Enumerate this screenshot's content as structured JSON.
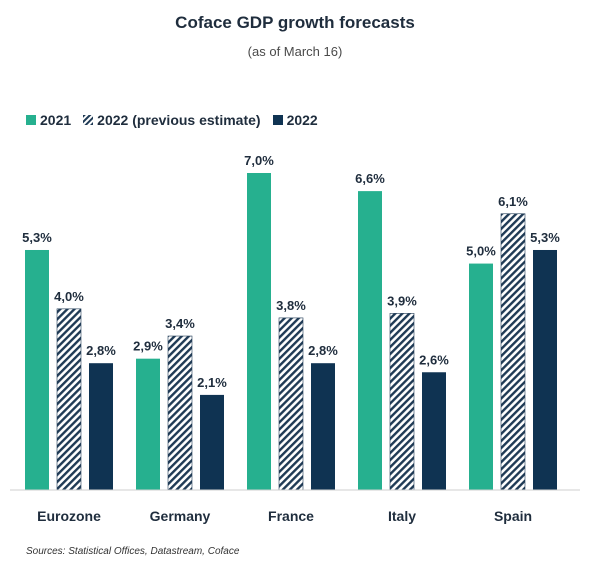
{
  "chart_data": {
    "type": "bar",
    "title": "Coface GDP growth forecasts",
    "subtitle": "(as of March 16)",
    "categories": [
      "Eurozone",
      "Germany",
      "France",
      "Italy",
      "Spain"
    ],
    "series": [
      {
        "name": "2021",
        "values": [
          5.3,
          2.9,
          7.0,
          6.6,
          5.0
        ],
        "labels": [
          "5,3%",
          "2,9%",
          "7,0%",
          "6,6%",
          "5,0%"
        ],
        "color": "#26b08f",
        "pattern": "solid"
      },
      {
        "name": "2022 (previous estimate)",
        "values": [
          4.0,
          3.4,
          3.8,
          3.9,
          6.1
        ],
        "labels": [
          "4,0%",
          "3,4%",
          "3,8%",
          "3,9%",
          "6,1%"
        ],
        "color": "#1f3a55",
        "pattern": "hatched"
      },
      {
        "name": "2022",
        "values": [
          2.8,
          2.1,
          2.8,
          2.6,
          5.3
        ],
        "labels": [
          "2,8%",
          "2,1%",
          "2,8%",
          "2,6%",
          "5,3%"
        ],
        "color": "#0f3352",
        "pattern": "solid"
      }
    ],
    "ylim": [
      0,
      7.5
    ],
    "grid": false,
    "legend_position": "top-left",
    "source": "Sources: Statistical Offices, Datastream,  Coface"
  }
}
